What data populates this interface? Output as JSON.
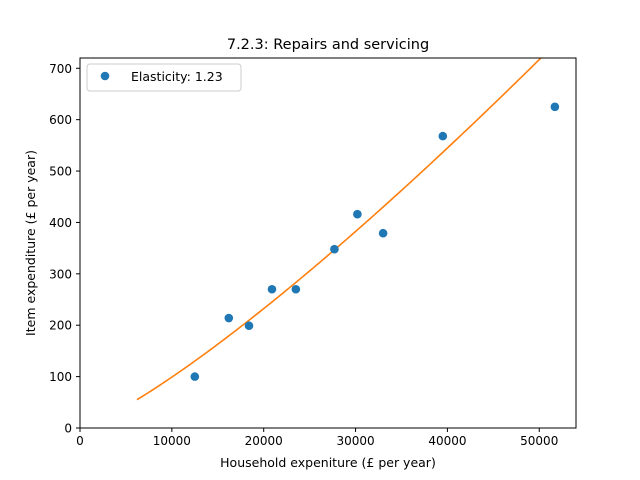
{
  "chart_data": {
    "type": "scatter",
    "title": "7.2.3: Repairs and servicing",
    "xlabel": "Household expeniture (£ per year)",
    "ylabel": "Item expenditure (£ per year)",
    "xlim": [
      0,
      54000
    ],
    "ylim": [
      0,
      720
    ],
    "xticks": [
      0,
      10000,
      20000,
      30000,
      40000,
      50000
    ],
    "yticks": [
      0,
      100,
      200,
      300,
      400,
      500,
      600,
      700
    ],
    "grid": false,
    "legend_position": "upper-left",
    "series": [
      {
        "name": "Elasticity: 1.23",
        "kind": "points",
        "color": "#1f77b4",
        "x": [
          12500,
          16200,
          18400,
          20900,
          23500,
          27700,
          30200,
          33000,
          39500,
          51700
        ],
        "y": [
          100,
          214,
          199,
          270,
          270,
          348,
          416,
          379,
          568,
          625
        ]
      },
      {
        "kind": "fitted-curve",
        "color": "#ff7f0e",
        "x_range": [
          6200,
          51500
        ],
        "elasticity": 1.23,
        "y_at_x_start": 55,
        "y_at_x_end": 720
      }
    ]
  }
}
